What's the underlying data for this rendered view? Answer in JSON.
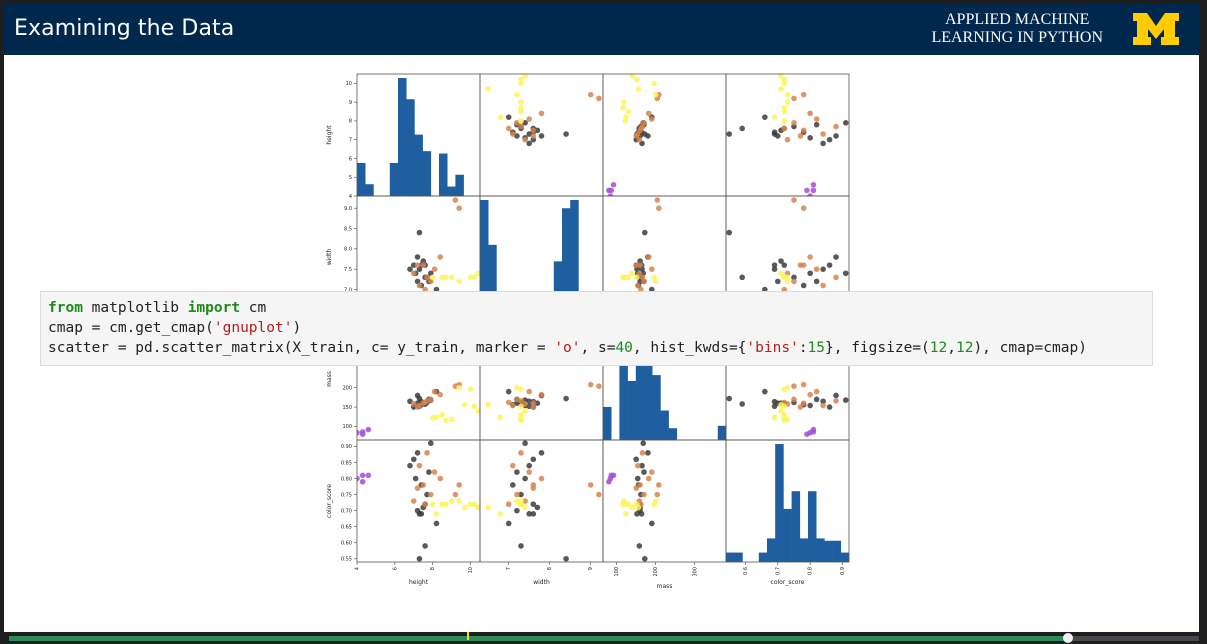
{
  "slide": {
    "title": "Examining the Data",
    "course_line1": "APPLIED MACHINE",
    "course_line2": "LEARNING IN PYTHON",
    "logo_icon": "university-of-michigan-block-m-logo",
    "brand_color": "#00274c",
    "logo_color": "#ffcb05"
  },
  "code": {
    "line1": {
      "kw1": "from",
      "t1": " matplotlib ",
      "kw2": "import",
      "t2": " cm"
    },
    "line2": {
      "t1": "cmap = cm.get_cmap(",
      "s1": "'gnuplot'",
      "t2": ")"
    },
    "line3": {
      "t1": "scatter = pd.scatter_matrix(X_train, c= y_train, marker = ",
      "s1": "'o'",
      "t2": ", s=",
      "n1": "40",
      "t3": ", hist_kwds={",
      "s2": "'bins'",
      "t4": ":",
      "n2": "15",
      "t5": "}, figsize=(",
      "n3": "12",
      "t6": ",",
      "n4": "12",
      "t7": "), cmap=cmap)"
    }
  },
  "player": {
    "progress": 0.89,
    "marker_position": 0.385,
    "progress_color": "#2e8b57",
    "marker_color": "#f2e200"
  },
  "chart_data": {
    "type": "scatter",
    "subtype": "scatter_matrix",
    "variables": [
      "height",
      "width",
      "mass",
      "color_score"
    ],
    "axis_labels": {
      "height": "height",
      "width": "width",
      "mass": "mass",
      "color_score": "color_score"
    },
    "ranges": {
      "height": [
        4,
        10.5
      ],
      "width": [
        6.3,
        9.3
      ],
      "mass": [
        65,
        380
      ],
      "color_score": [
        0.54,
        0.92
      ]
    },
    "ticks": {
      "height": [
        "4",
        "5",
        "6",
        "7",
        "8",
        "9",
        "10"
      ],
      "width": [
        "6.5",
        "7.0",
        "7.5",
        "8.0",
        "8.5",
        "9.0"
      ],
      "mass": [
        "100",
        "150",
        "200"
      ],
      "color_score": [
        "0.55",
        "0.60",
        "0.65",
        "0.70",
        "0.75",
        "0.80",
        "0.85",
        "0.90"
      ]
    },
    "bottom_ticks": {
      "height": [
        "4",
        "6",
        "8",
        "10"
      ],
      "width": [
        "6",
        "7",
        "8",
        "9"
      ],
      "mass": [
        "100",
        "200",
        "300"
      ],
      "color_score": [
        "0.6",
        "0.7",
        "0.8",
        "0.9"
      ]
    },
    "class_colors": [
      "#000000",
      "#9b30c8",
      "#d2691e",
      "#ffff33"
    ],
    "class_plot_colors": [
      "#3c3c3c",
      "#a24fd0",
      "#d5844f",
      "#fbf55a"
    ],
    "points": [
      {
        "c": 0,
        "h": 7.3,
        "w": 7.5,
        "m": 152,
        "cs": 0.69
      },
      {
        "c": 0,
        "h": 7.2,
        "w": 7.2,
        "m": 160,
        "cs": 0.7
      },
      {
        "c": 0,
        "h": 7.6,
        "w": 7.6,
        "m": 158,
        "cs": 0.72
      },
      {
        "c": 0,
        "h": 7.1,
        "w": 7.4,
        "m": 154,
        "cs": 0.8
      },
      {
        "c": 0,
        "h": 7.7,
        "w": 7.3,
        "m": 162,
        "cs": 0.75
      },
      {
        "c": 0,
        "h": 7.4,
        "w": 7.1,
        "m": 156,
        "cs": 0.78
      },
      {
        "c": 0,
        "h": 7.0,
        "w": 7.6,
        "m": 150,
        "cs": 0.86
      },
      {
        "c": 0,
        "h": 7.8,
        "w": 7.2,
        "m": 170,
        "cs": 0.82
      },
      {
        "c": 0,
        "h": 6.8,
        "w": 7.5,
        "m": 165,
        "cs": 0.84
      },
      {
        "c": 0,
        "h": 7.5,
        "w": 7.7,
        "m": 160,
        "cs": 0.71
      },
      {
        "c": 0,
        "h": 8.2,
        "w": 7.0,
        "m": 190,
        "cs": 0.66
      },
      {
        "c": 0,
        "h": 7.3,
        "w": 8.4,
        "m": 172,
        "cs": 0.55
      },
      {
        "c": 0,
        "h": 7.2,
        "w": 7.8,
        "m": 180,
        "cs": 0.88
      },
      {
        "c": 0,
        "h": 7.9,
        "w": 7.4,
        "m": 168,
        "cs": 0.91
      },
      {
        "c": 0,
        "h": 7.6,
        "w": 7.3,
        "m": 158,
        "cs": 0.59
      },
      {
        "c": 0,
        "h": 7.4,
        "w": 7.6,
        "m": 164,
        "cs": 0.69
      },
      {
        "c": 1,
        "h": 4.3,
        "w": 5.8,
        "m": 86,
        "cs": 0.81
      },
      {
        "c": 1,
        "h": 4.0,
        "w": 5.9,
        "m": 84,
        "cs": 0.8
      },
      {
        "c": 1,
        "h": 4.6,
        "w": 6.0,
        "m": 92,
        "cs": 0.81
      },
      {
        "c": 1,
        "h": 4.3,
        "w": 6.1,
        "m": 80,
        "cs": 0.79
      },
      {
        "c": 2,
        "h": 7.5,
        "w": 7.6,
        "m": 160,
        "cs": 0.78
      },
      {
        "c": 2,
        "h": 7.9,
        "w": 7.2,
        "m": 170,
        "cs": 0.75
      },
      {
        "c": 2,
        "h": 8.4,
        "w": 7.8,
        "m": 182,
        "cs": 0.8
      },
      {
        "c": 2,
        "h": 7.3,
        "w": 7.1,
        "m": 154,
        "cs": 0.84
      },
      {
        "c": 2,
        "h": 9.2,
        "w": 9.2,
        "m": 204,
        "cs": 0.75
      },
      {
        "c": 2,
        "h": 9.4,
        "w": 9.0,
        "m": 208,
        "cs": 0.78
      },
      {
        "c": 2,
        "h": 7.6,
        "w": 7.0,
        "m": 162,
        "cs": 0.72
      },
      {
        "c": 2,
        "h": 7.0,
        "w": 7.4,
        "m": 158,
        "cs": 0.73
      },
      {
        "c": 2,
        "h": 8.1,
        "w": 7.5,
        "m": 190,
        "cs": 0.82
      },
      {
        "c": 2,
        "h": 7.7,
        "w": 7.3,
        "m": 166,
        "cs": 0.88
      },
      {
        "c": 2,
        "h": 7.2,
        "w": 7.6,
        "m": 150,
        "cs": 0.77
      },
      {
        "c": 3,
        "h": 8.5,
        "w": 7.3,
        "m": 130,
        "cs": 0.72
      },
      {
        "c": 3,
        "h": 9.0,
        "w": 7.3,
        "m": 118,
        "cs": 0.73
      },
      {
        "c": 3,
        "h": 10.2,
        "w": 7.3,
        "m": 152,
        "cs": 0.72
      },
      {
        "c": 3,
        "h": 10.4,
        "w": 7.4,
        "m": 140,
        "cs": 0.71
      },
      {
        "c": 3,
        "h": 8.0,
        "w": 7.3,
        "m": 122,
        "cs": 0.72
      },
      {
        "c": 3,
        "h": 9.4,
        "w": 7.2,
        "m": 200,
        "cs": 0.73
      },
      {
        "c": 3,
        "h": 8.7,
        "w": 7.3,
        "m": 116,
        "cs": 0.72
      },
      {
        "c": 3,
        "h": 8.2,
        "w": 6.8,
        "m": 124,
        "cs": 0.69
      },
      {
        "c": 3,
        "h": 10.0,
        "w": 7.3,
        "m": 196,
        "cs": 0.72
      },
      {
        "c": 3,
        "h": 9.7,
        "w": 6.5,
        "m": 156,
        "cs": 0.71
      }
    ],
    "histograms": {
      "height": [
        0.28,
        0.1,
        0,
        0,
        0.28,
        1.0,
        0.82,
        0.52,
        0.38,
        0,
        0.36,
        0.08,
        0.18,
        0,
        0
      ],
      "width": [
        1.0,
        0.62,
        0.1,
        0,
        0,
        0,
        0,
        0,
        0,
        0.48,
        0.93,
        1.0,
        0,
        0,
        0
      ],
      "mass": [
        0.28,
        0,
        0.82,
        0.5,
        0.7,
        1.0,
        0.55,
        0.25,
        0.1,
        0,
        0,
        0,
        0,
        0,
        0.12
      ],
      "color_score": [
        0.08,
        0.08,
        0,
        0,
        0.08,
        0.2,
        1.0,
        0.45,
        0.6,
        0.2,
        0.6,
        0.2,
        0.18,
        0.18,
        0.08
      ]
    }
  }
}
